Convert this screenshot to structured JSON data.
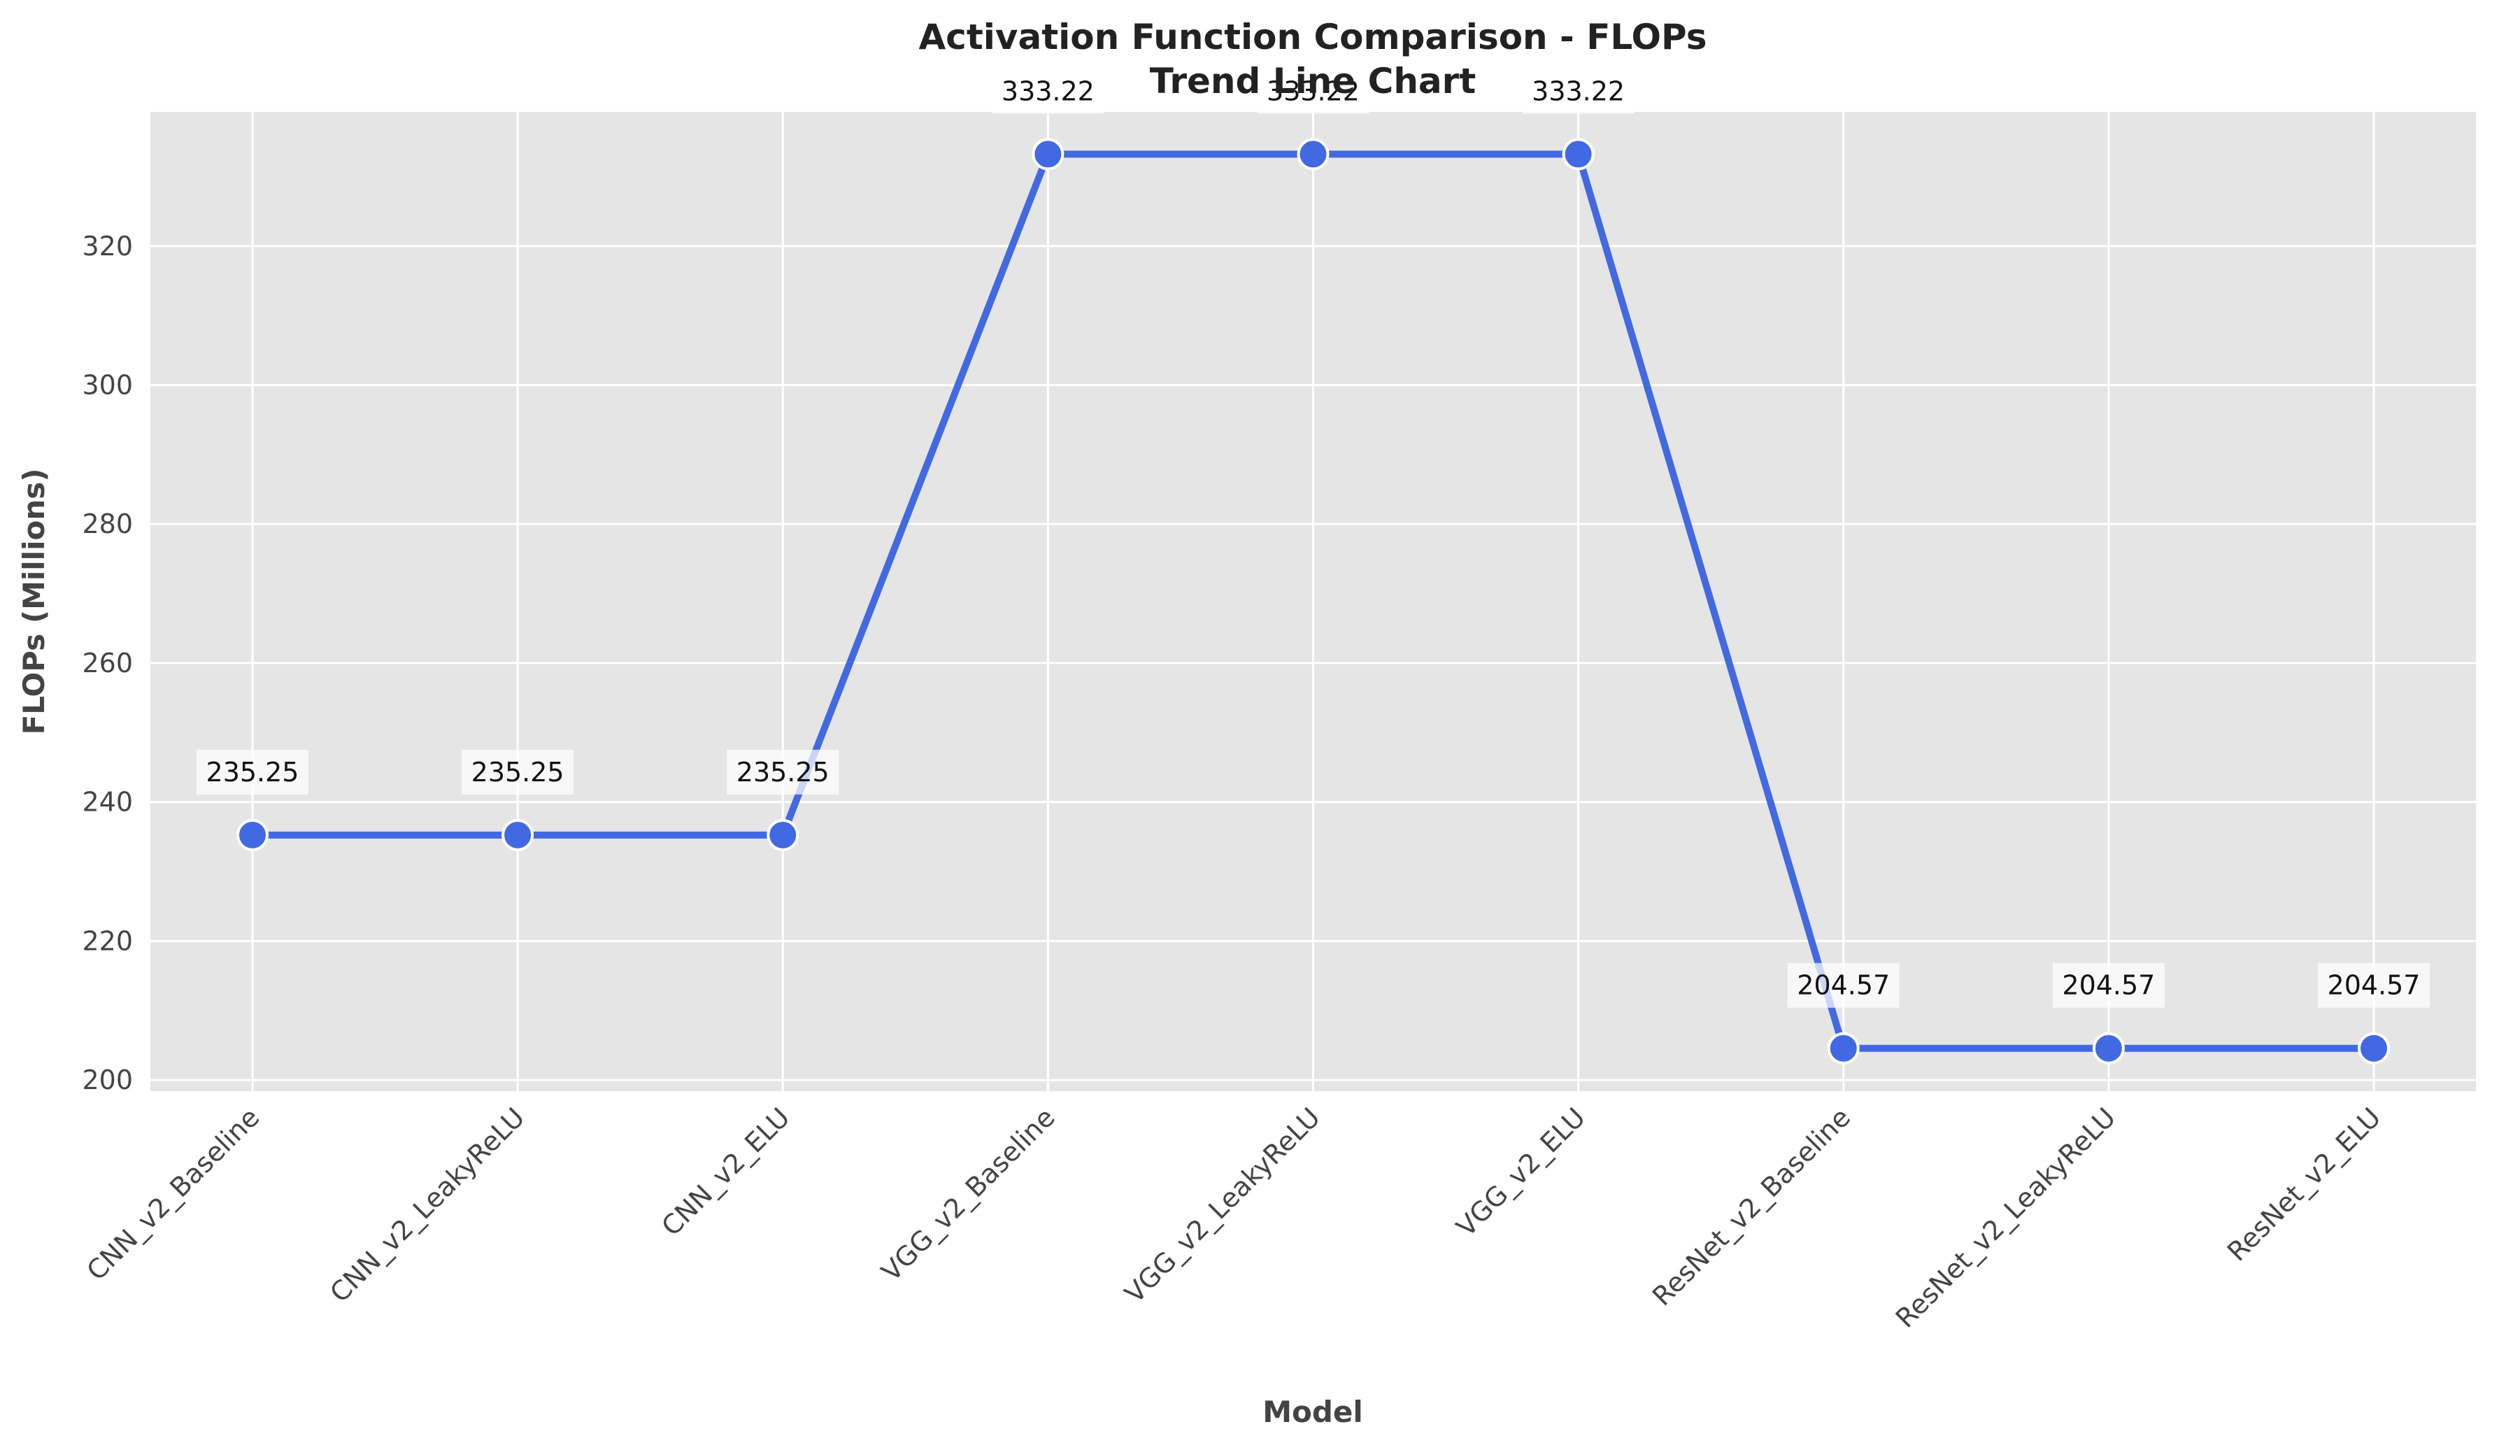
{
  "chart_data": {
    "type": "line",
    "title": "Activation Function Comparison - FLOPs",
    "subtitle": "Trend Line Chart",
    "xlabel": "Model",
    "ylabel": "FLOPs (Millions)",
    "categories": [
      "CNN_v2_Baseline",
      "CNN_v2_LeakyReLU",
      "CNN_v2_ELU",
      "VGG_v2_Baseline",
      "VGG_v2_LeakyReLU",
      "VGG_v2_ELU",
      "ResNet_v2_Baseline",
      "ResNet_v2_LeakyReLU",
      "ResNet_v2_ELU"
    ],
    "values": [
      235.25,
      235.25,
      235.25,
      333.22,
      333.22,
      333.22,
      204.57,
      204.57,
      204.57
    ],
    "data_labels": [
      "235.25",
      "235.25",
      "235.25",
      "333.22",
      "333.22",
      "333.22",
      "204.57",
      "204.57",
      "204.57"
    ],
    "ylim": [
      198.4,
      339.3
    ],
    "yticks": [
      200,
      220,
      240,
      260,
      280,
      300,
      320
    ],
    "grid": true,
    "colors": {
      "line": "#4169e1",
      "marker_edge": "#ffffff",
      "plot_background": "#e5e5e5",
      "grid": "#ffffff"
    }
  }
}
